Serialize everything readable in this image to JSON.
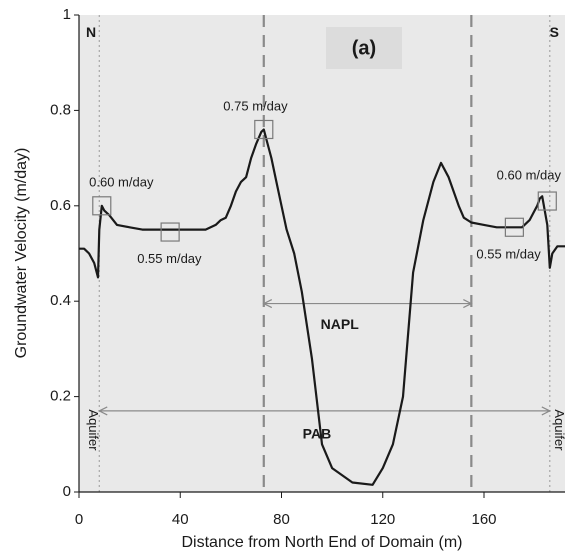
{
  "chart_data": {
    "type": "line",
    "panel_label": "(a)",
    "xlabel": "Distance from North End of Domain (m)",
    "ylabel": "Groundwater Velocity (m/day)",
    "xlim": [
      0,
      192
    ],
    "ylim": [
      0,
      1
    ],
    "x_ticks": [
      0,
      40,
      80,
      120,
      160
    ],
    "y_ticks": [
      0,
      0.2,
      0.4,
      0.6,
      0.8,
      1
    ],
    "y_tick_labels": [
      "0",
      "0.2",
      "0.4",
      "0.6",
      "0.8",
      "1"
    ],
    "grid": false,
    "background": "#e9e9e9",
    "line_color": "#1a1a1a",
    "series": [
      {
        "x": [
          0,
          2,
          4,
          6,
          7.5,
          8,
          9,
          10,
          12,
          15,
          20,
          25,
          30,
          35,
          40,
          45,
          50,
          54,
          56,
          58,
          60,
          62,
          64,
          66,
          68,
          70,
          72,
          73,
          74,
          76,
          78,
          80,
          82,
          85,
          88,
          92,
          96,
          100,
          108,
          116,
          120,
          124,
          128,
          132,
          136,
          140,
          143,
          146,
          150,
          152,
          155,
          160,
          165,
          170,
          175,
          178,
          180,
          181,
          182,
          183,
          185,
          186,
          187,
          189,
          192
        ],
        "y": [
          0.51,
          0.51,
          0.5,
          0.48,
          0.45,
          0.55,
          0.6,
          0.59,
          0.58,
          0.56,
          0.555,
          0.55,
          0.55,
          0.55,
          0.55,
          0.55,
          0.55,
          0.56,
          0.57,
          0.575,
          0.6,
          0.63,
          0.65,
          0.66,
          0.7,
          0.73,
          0.755,
          0.76,
          0.74,
          0.7,
          0.65,
          0.6,
          0.55,
          0.5,
          0.42,
          0.28,
          0.1,
          0.05,
          0.02,
          0.015,
          0.05,
          0.1,
          0.2,
          0.46,
          0.57,
          0.65,
          0.69,
          0.66,
          0.6,
          0.575,
          0.565,
          0.56,
          0.555,
          0.555,
          0.555,
          0.57,
          0.59,
          0.6,
          0.615,
          0.62,
          0.56,
          0.47,
          0.5,
          0.515,
          0.515
        ]
      }
    ],
    "vertical_dashed_lines": [
      73,
      155
    ],
    "vertical_dotted_lines": [
      8,
      186
    ],
    "edge_labels": {
      "north": "N",
      "south": "S"
    },
    "markers": [
      {
        "x": 9,
        "y": 0.6
      },
      {
        "x": 36,
        "y": 0.545
      },
      {
        "x": 73,
        "y": 0.76
      },
      {
        "x": 172,
        "y": 0.555
      },
      {
        "x": 185,
        "y": 0.61
      }
    ],
    "annotations": [
      {
        "text": "0.60 m/day",
        "x": 4,
        "y": 0.64
      },
      {
        "text": "0.55 m/day",
        "x": 23,
        "y": 0.48
      },
      {
        "text": "0.75 m/day",
        "x": 57,
        "y": 0.8
      },
      {
        "text": "0.60 m/day",
        "x": 165,
        "y": 0.655
      },
      {
        "text": "0.55 m/day",
        "x": 157,
        "y": 0.49
      }
    ],
    "ranges": [
      {
        "label": "NAPL",
        "from": 73,
        "to": 155,
        "y": 0.395,
        "label_x": 103,
        "label_y": 0.35
      },
      {
        "label": "PAB",
        "from": 8,
        "to": 186,
        "y": 0.17,
        "label_x": 94,
        "label_y": 0.12
      }
    ],
    "side_labels": [
      {
        "text": "Aquifer",
        "x": 4,
        "y": 0.13,
        "rotate": 90
      },
      {
        "text": "Aquifer",
        "x": 188,
        "y": 0.13,
        "rotate": 90
      }
    ]
  }
}
